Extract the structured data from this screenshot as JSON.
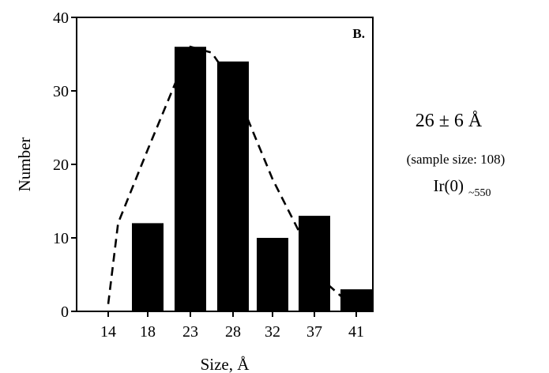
{
  "chart_data": {
    "type": "bar",
    "panel_label": "B.",
    "categories": [
      "14",
      "18",
      "23",
      "28",
      "32",
      "37",
      "41"
    ],
    "values": [
      0,
      12,
      36,
      34,
      10,
      13,
      3
    ],
    "fit_curve": {
      "x": [
        14,
        15,
        18,
        23,
        25.5,
        28,
        32,
        36,
        38,
        40,
        41
      ],
      "y": [
        1,
        12,
        22,
        36,
        35.2,
        31,
        18,
        9,
        4,
        1.5,
        0.8
      ]
    },
    "xlabel": "Size, Å",
    "ylabel": "Number",
    "ylim": [
      0,
      40
    ],
    "yticks": [
      0,
      10,
      20,
      30,
      40
    ],
    "grid": false,
    "annotations": {
      "mean": "26 ± 6 Å",
      "sample": "(sample size: 108)",
      "ir_main": "Ir(0)",
      "ir_sub": "~550"
    }
  }
}
